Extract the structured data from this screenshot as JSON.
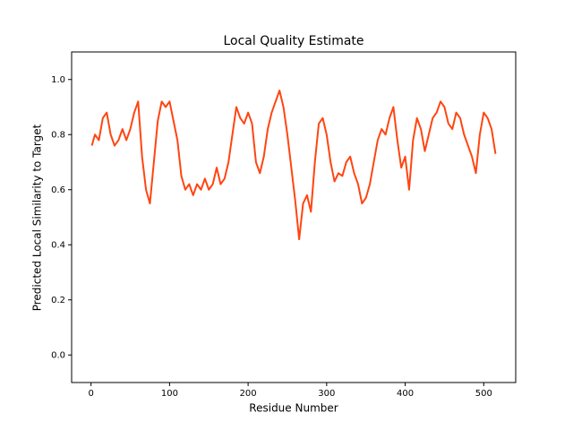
{
  "chart_data": {
    "type": "line",
    "title": "Local Quality Estimate",
    "x_label": "Residue Number",
    "y_label": "Predicted Local Similarity to Target",
    "x": [
      1,
      5,
      10,
      15,
      20,
      25,
      30,
      35,
      40,
      45,
      50,
      55,
      60,
      65,
      70,
      75,
      80,
      85,
      90,
      95,
      100,
      105,
      110,
      115,
      120,
      125,
      130,
      135,
      140,
      145,
      150,
      155,
      160,
      165,
      170,
      175,
      180,
      185,
      190,
      195,
      200,
      205,
      210,
      215,
      220,
      225,
      230,
      235,
      240,
      245,
      250,
      255,
      260,
      265,
      270,
      275,
      280,
      285,
      290,
      295,
      300,
      305,
      310,
      315,
      320,
      325,
      330,
      335,
      340,
      345,
      350,
      355,
      360,
      365,
      370,
      375,
      380,
      385,
      390,
      395,
      400,
      405,
      410,
      415,
      420,
      425,
      430,
      435,
      440,
      445,
      450,
      455,
      460,
      465,
      470,
      475,
      480,
      485,
      490,
      495,
      500,
      505,
      510,
      515
    ],
    "series": [
      {
        "color": "#ff4511",
        "values": [
          0.76,
          0.8,
          0.78,
          0.86,
          0.88,
          0.8,
          0.76,
          0.78,
          0.82,
          0.78,
          0.82,
          0.88,
          0.92,
          0.72,
          0.6,
          0.55,
          0.7,
          0.85,
          0.92,
          0.9,
          0.92,
          0.85,
          0.78,
          0.65,
          0.6,
          0.62,
          0.58,
          0.62,
          0.6,
          0.64,
          0.6,
          0.62,
          0.68,
          0.62,
          0.64,
          0.7,
          0.8,
          0.9,
          0.86,
          0.84,
          0.88,
          0.84,
          0.7,
          0.66,
          0.72,
          0.82,
          0.88,
          0.92,
          0.96,
          0.9,
          0.8,
          0.68,
          0.56,
          0.42,
          0.55,
          0.58,
          0.52,
          0.7,
          0.84,
          0.86,
          0.8,
          0.7,
          0.63,
          0.66,
          0.65,
          0.7,
          0.72,
          0.66,
          0.62,
          0.55,
          0.57,
          0.62,
          0.7,
          0.78,
          0.82,
          0.8,
          0.86,
          0.9,
          0.78,
          0.68,
          0.72,
          0.6,
          0.78,
          0.86,
          0.82,
          0.74,
          0.8,
          0.86,
          0.88,
          0.92,
          0.9,
          0.84,
          0.82,
          0.88,
          0.86,
          0.8,
          0.76,
          0.72,
          0.66,
          0.8,
          0.88,
          0.86,
          0.82,
          0.73
        ]
      }
    ],
    "xlim": [
      -24.7,
      540.7
    ],
    "ylim": [
      -0.1,
      1.1
    ],
    "xticks": [
      0,
      100,
      200,
      300,
      400,
      500
    ],
    "yticks": [
      {
        "value": 0,
        "label": "0.0"
      },
      0.2,
      0.4,
      0.6,
      0.8,
      {
        "value": 1,
        "label": "1.0"
      }
    ]
  }
}
